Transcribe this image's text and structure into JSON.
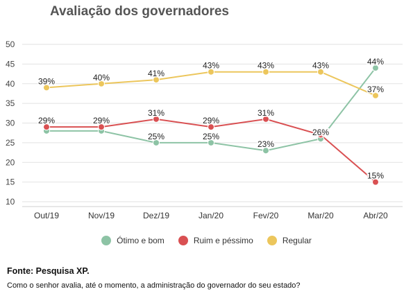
{
  "header": {
    "title": "Avaliação dos governadores"
  },
  "chart_data": {
    "type": "line",
    "title": "Avaliação dos governadores",
    "categories": [
      "Out/19",
      "Nov/19",
      "Dez/19",
      "Jan/20",
      "Fev/20",
      "Mar/20",
      "Abr/20"
    ],
    "yticks": [
      "50",
      "45",
      "40",
      "35",
      "30",
      "25",
      "20",
      "15",
      "10"
    ],
    "ylim": [
      10,
      50
    ],
    "grid": true,
    "legend_position": "bottom",
    "series": [
      {
        "name": "Ótimo e bom",
        "color": "#8dc3a5",
        "values": [
          28,
          28,
          25,
          25,
          23,
          26,
          44
        ],
        "labels": [
          "",
          "",
          "25%",
          "25%",
          "23%",
          "26%",
          "44%"
        ]
      },
      {
        "name": "Ruim e péssimo",
        "color": "#d95052",
        "values": [
          29,
          29,
          31,
          29,
          31,
          27,
          15
        ],
        "labels": [
          "29%",
          "29%",
          "31%",
          "29%",
          "31%",
          "",
          "15%"
        ]
      },
      {
        "name": "Regular",
        "color": "#ecc65c",
        "values": [
          39,
          40,
          41,
          43,
          43,
          43,
          37
        ],
        "labels": [
          "39%",
          "40%",
          "41%",
          "43%",
          "43%",
          "43%",
          "37%"
        ]
      }
    ]
  },
  "footer": {
    "source": "Fonte: Pesquisa XP.",
    "question": "Como o senhor avalia, até o momento, a administração do governador do seu estado?"
  }
}
